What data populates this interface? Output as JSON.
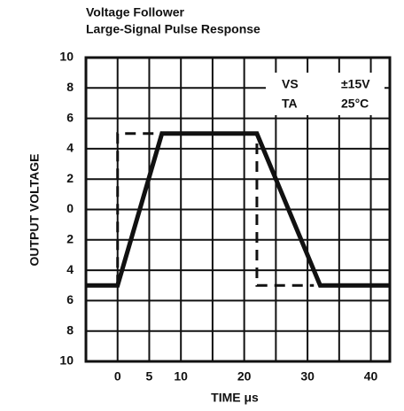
{
  "chart_data": {
    "type": "line",
    "title": [
      "Voltage Follower",
      "Large-Signal Pulse Response"
    ],
    "ylabel": "OUTPUT VOLTAGE",
    "xlabel": "TIME μs",
    "annotations": [
      [
        "VS",
        "±15V"
      ],
      [
        "TA",
        "25°C"
      ]
    ],
    "series": [
      {
        "color": "#111111",
        "style": "solid",
        "x": [
          -5,
          0,
          7,
          22,
          32,
          43
        ],
        "values": [
          -5,
          -5,
          5,
          5,
          -5,
          -5
        ]
      },
      {
        "color": "#111111",
        "style": "dashed",
        "x": [
          0,
          0,
          22,
          22,
          31
        ],
        "values": [
          -5,
          5,
          5,
          -5,
          -5
        ]
      }
    ],
    "xlim": [
      -5,
      43
    ],
    "xticks": [
      0,
      5,
      10,
      20,
      30,
      40
    ],
    "minor_xticks": [
      15,
      25,
      35
    ],
    "ylim": [
      -10,
      10
    ],
    "yticks": [
      {
        "value": 10,
        "label": "10"
      },
      8,
      6,
      4,
      2,
      0,
      {
        "value": -2,
        "label": "2"
      },
      {
        "value": -4,
        "label": "4"
      },
      {
        "value": -6,
        "label": "6"
      },
      {
        "value": -8,
        "label": "8"
      },
      {
        "value": -10,
        "label": "10"
      }
    ],
    "grid": true
  }
}
